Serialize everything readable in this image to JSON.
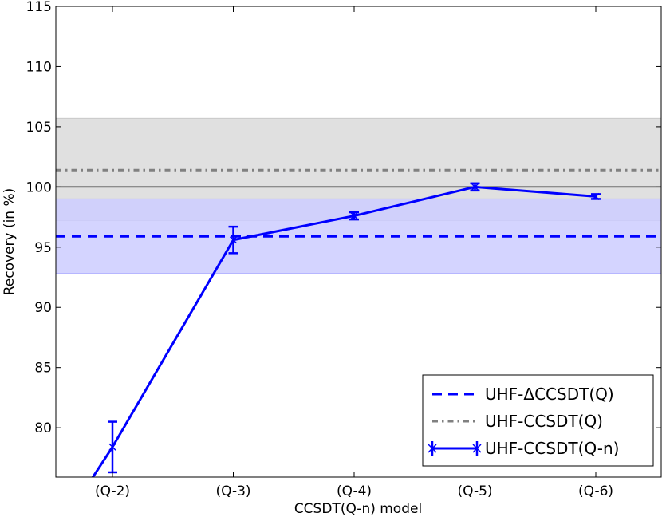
{
  "chart_data": {
    "type": "line",
    "title": "",
    "xlabel": "CCSDT(Q-n) model",
    "ylabel": "Recovery (in %)",
    "categories": [
      "(Q-2)",
      "(Q-3)",
      "(Q-4)",
      "(Q-5)",
      "(Q-6)"
    ],
    "ylim": [
      75.9,
      115
    ],
    "yticks": [
      80,
      85,
      90,
      95,
      100,
      105,
      110,
      115
    ],
    "grid": false,
    "legend_position": "lower right",
    "reference_line": {
      "value": 100,
      "color": "#000000"
    },
    "series": [
      {
        "name": "UHF-ΔCCSDT(Q)",
        "kind": "hline",
        "value": 95.9,
        "band": [
          92.8,
          99.0
        ],
        "color": "#0000ff",
        "band_color": "#ccccff",
        "linestyle": "dashed"
      },
      {
        "name": "UHF-CCSDT(Q)",
        "kind": "hline",
        "value": 101.4,
        "band": [
          97.2,
          105.7
        ],
        "color": "#808080",
        "band_color": "#e0e0e0",
        "linestyle": "dashdot"
      },
      {
        "name": "UHF-CCSDT(Q-n)",
        "kind": "errorbar",
        "x_start": -0.5,
        "y_start": 70.7,
        "values": [
          78.4,
          95.6,
          97.6,
          100.0,
          99.2
        ],
        "errors": [
          2.1,
          1.1,
          0.3,
          0.3,
          0.2
        ],
        "color": "#0000ff",
        "marker": "x"
      }
    ]
  }
}
